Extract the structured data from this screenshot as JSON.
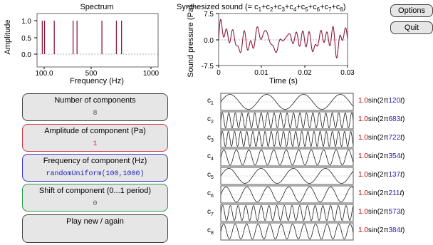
{
  "spectrum": {
    "title": "Spectrum",
    "xlabel": "Frequency (Hz)",
    "ylabel": "Amplitude",
    "yticks": [
      "1.0",
      "0.5",
      "0.0"
    ],
    "xticks": [
      "100.0",
      "500",
      "1000"
    ]
  },
  "synth": {
    "title_parts": [
      {
        "t": "Synthesized sound (= c"
      },
      {
        "s": "1"
      },
      {
        "t": "+c"
      },
      {
        "s": "2"
      },
      {
        "t": "+c"
      },
      {
        "s": "3"
      },
      {
        "t": "+c"
      },
      {
        "s": "4"
      },
      {
        "t": "+c"
      },
      {
        "s": "5"
      },
      {
        "t": "+c"
      },
      {
        "s": "6"
      },
      {
        "t": "+c"
      },
      {
        "s": "7"
      },
      {
        "t": "+c"
      },
      {
        "s": "8"
      },
      {
        "t": ")"
      }
    ],
    "ylabel": "Sound pressure (Pa)",
    "xlabel": "Time (s)",
    "yticks": [
      "7.5",
      "0.0",
      "-7.5"
    ],
    "xticks": [
      "0",
      "0.01",
      "0.02",
      "0.03"
    ]
  },
  "buttons": {
    "options": "Options",
    "quit": "Quit"
  },
  "controls": {
    "num_label": "Number of components",
    "num_value": "8",
    "amp_label": "Amplitude of component (Pa)",
    "amp_value": "1",
    "freq_label": "Frequency of component (Hz)",
    "freq_value": "randomUniform(100,1000)",
    "shift_label": "Shift of component (0...1 period)",
    "shift_value": "0",
    "play_label": "Play new / again"
  },
  "components": [
    {
      "label": "c",
      "sub": "1",
      "amp": "1.0",
      "fn": "sin(2π",
      "freq": "120",
      "tvar": "t",
      "close": ")"
    },
    {
      "label": "c",
      "sub": "2",
      "amp": "1.0",
      "fn": "sin(2π",
      "freq": "683",
      "tvar": "t",
      "close": ")"
    },
    {
      "label": "c",
      "sub": "3",
      "amp": "1.0",
      "fn": "sin(2π",
      "freq": "722",
      "tvar": "t",
      "close": ")"
    },
    {
      "label": "c",
      "sub": "4",
      "amp": "1.0",
      "fn": "sin(2π",
      "freq": "354",
      "tvar": "t",
      "close": ")"
    },
    {
      "label": "c",
      "sub": "5",
      "amp": "1.0",
      "fn": "sin(2π",
      "freq": "137",
      "tvar": "t",
      "close": ")"
    },
    {
      "label": "c",
      "sub": "6",
      "amp": "1.0",
      "fn": "sin(2π",
      "freq": "211",
      "tvar": "t",
      "close": ")"
    },
    {
      "label": "c",
      "sub": "7",
      "amp": "1.0",
      "fn": "sin(2π",
      "freq": "573",
      "tvar": "t",
      "close": ")"
    },
    {
      "label": "c",
      "sub": "8",
      "amp": "1.0",
      "fn": "sin(2π",
      "freq": "384",
      "tvar": "t",
      "close": ")"
    }
  ],
  "chart_data": [
    {
      "type": "bar",
      "title": "Spectrum",
      "xlabel": "Frequency (Hz)",
      "ylabel": "Amplitude",
      "x": [
        120,
        137,
        211,
        354,
        384,
        573,
        683,
        722
      ],
      "values": [
        1,
        1,
        1,
        1,
        1,
        1,
        1,
        1
      ],
      "xlim": [
        80,
        1000
      ],
      "ylim": [
        0,
        1.1
      ]
    },
    {
      "type": "line",
      "ylabel": "Sound pressure (Pa)",
      "xlabel": "Time (s)",
      "xlim": [
        0,
        0.03
      ],
      "ylim": [
        -7.5,
        7.5
      ],
      "frequencies": [
        120,
        683,
        722,
        354,
        137,
        211,
        573,
        384
      ],
      "amplitude": 1,
      "shift": 0
    }
  ],
  "colors": {
    "signal": "#8b1a3c",
    "amp": "#cc0000",
    "freq": "#2222bb",
    "amp_border": "#cc3344",
    "freq_border": "#3333cc",
    "shift_border": "#229944"
  }
}
